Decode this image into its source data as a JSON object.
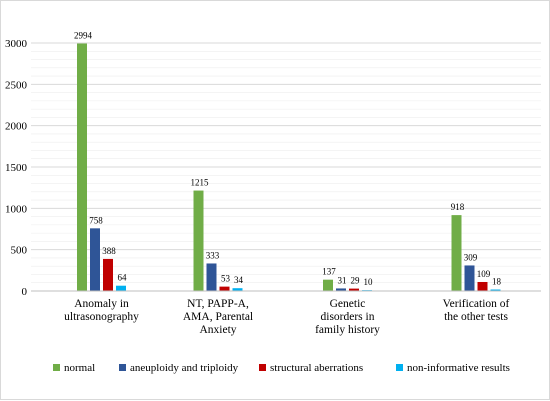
{
  "chart_data": {
    "type": "bar",
    "title": "",
    "xlabel": "",
    "ylabel": "",
    "ylim": [
      0,
      3000
    ],
    "yticks": [
      0,
      500,
      1000,
      1500,
      2000,
      2500,
      3000
    ],
    "grid": true,
    "legend_position": "bottom",
    "categories": [
      [
        "Anomaly in",
        "ultrasonography"
      ],
      [
        "NT, PAPP-A,",
        "AMA, Parental",
        "Anxiety"
      ],
      [
        "Genetic",
        "disorders in",
        "family history"
      ],
      [
        "Verification of",
        "the other tests"
      ]
    ],
    "series": [
      {
        "name": "normal",
        "color": "#70ad47",
        "values": [
          2994,
          1215,
          137,
          918
        ]
      },
      {
        "name": "aneuploidy and triploidy",
        "color": "#2f5597",
        "values": [
          758,
          333,
          31,
          309
        ]
      },
      {
        "name": "structural aberrations",
        "color": "#c00000",
        "values": [
          388,
          53,
          29,
          109
        ]
      },
      {
        "name": "non-informative results",
        "color": "#00b0f0",
        "values": [
          64,
          34,
          10,
          18
        ]
      }
    ]
  }
}
